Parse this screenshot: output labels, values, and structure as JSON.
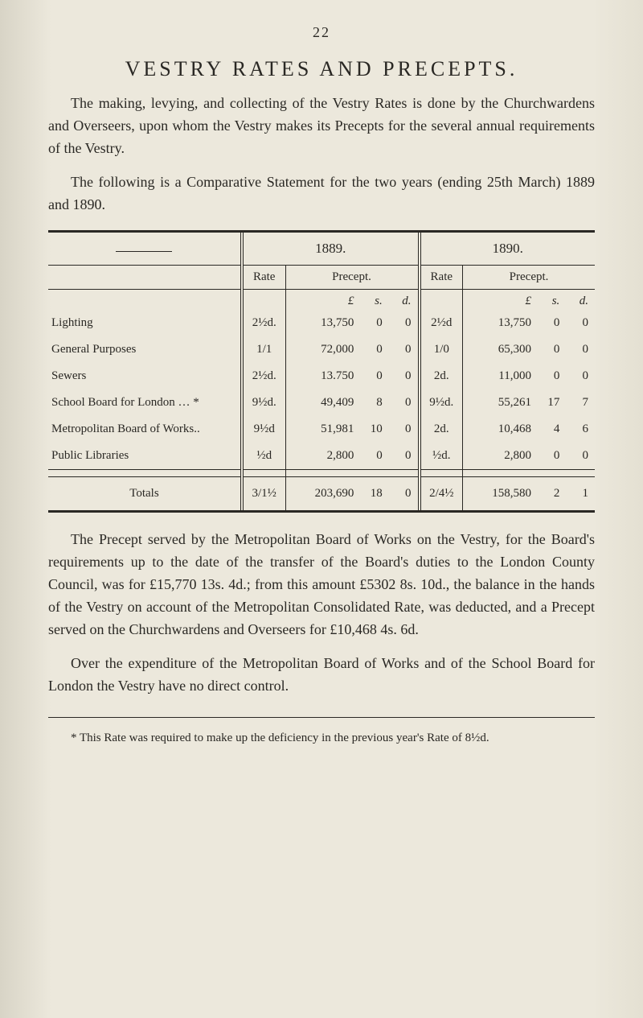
{
  "page_number": "22",
  "title": "VESTRY RATES AND PRECEPTS.",
  "paragraphs": {
    "p1": "The making, levying, and collecting of the Vestry Rates is done by the Churchwardens and Overseers, upon whom the Vestry makes its Precepts for the several annual requirements of the Vestry.",
    "p2": "The following is a Comparative Statement for the two years (ending 25th March) 1889 and 1890.",
    "p3": "The Precept served by the Metropolitan Board of Works on the Vestry, for the Board's requirements up to the date of the transfer of the Board's duties to the London County Council, was for £15,770 13s. 4d.; from this amount £5302 8s. 10d., the balance in the hands of the Vestry on account of the Metropolitan Consolidated Rate, was deducted, and a Precept served on the Churchwardens and Overseers for £10,468 4s. 6d.",
    "p4": "Over the expenditure of the Metropolitan Board of Works and of the School Board for London the Vestry have no direct control."
  },
  "table": {
    "years": {
      "y1": "1889.",
      "y2": "1890."
    },
    "headers": {
      "rate": "Rate",
      "precept": "Precept."
    },
    "lsd": {
      "l": "£",
      "s": "s.",
      "d": "d."
    },
    "rows": [
      {
        "label": "Lighting",
        "rate1": "2½d.",
        "l1": "13,750",
        "s1": "0",
        "d1": "0",
        "rate2": "2½d",
        "l2": "13,750",
        "s2": "0",
        "d2": "0"
      },
      {
        "label": "General Purposes",
        "rate1": "1/1",
        "l1": "72,000",
        "s1": "0",
        "d1": "0",
        "rate2": "1/0",
        "l2": "65,300",
        "s2": "0",
        "d2": "0"
      },
      {
        "label": "Sewers",
        "rate1": "2½d.",
        "l1": "13.750",
        "s1": "0",
        "d1": "0",
        "rate2": "2d.",
        "l2": "11,000",
        "s2": "0",
        "d2": "0"
      },
      {
        "label": "School Board for London  … *",
        "rate1": "9½d.",
        "l1": "49,409",
        "s1": "8",
        "d1": "0",
        "rate2": "9½d.",
        "l2": "55,261",
        "s2": "17",
        "d2": "7"
      },
      {
        "label": "Metropolitan Board of Works..",
        "rate1": "9½d",
        "l1": "51,981",
        "s1": "10",
        "d1": "0",
        "rate2": "2d.",
        "l2": "10,468",
        "s2": "4",
        "d2": "6"
      },
      {
        "label": "Public Libraries",
        "rate1": "½d",
        "l1": "2,800",
        "s1": "0",
        "d1": "0",
        "rate2": "½d.",
        "l2": "2,800",
        "s2": "0",
        "d2": "0"
      }
    ],
    "totals": {
      "label": "Totals",
      "rate1": "3/1½",
      "l1": "203,690",
      "s1": "18",
      "d1": "0",
      "rate2": "2/4½",
      "l2": "158,580",
      "s2": "2",
      "d2": "1"
    }
  },
  "footnote": "* This Rate was required to make up the deficiency in the previous year's Rate of 8½d."
}
